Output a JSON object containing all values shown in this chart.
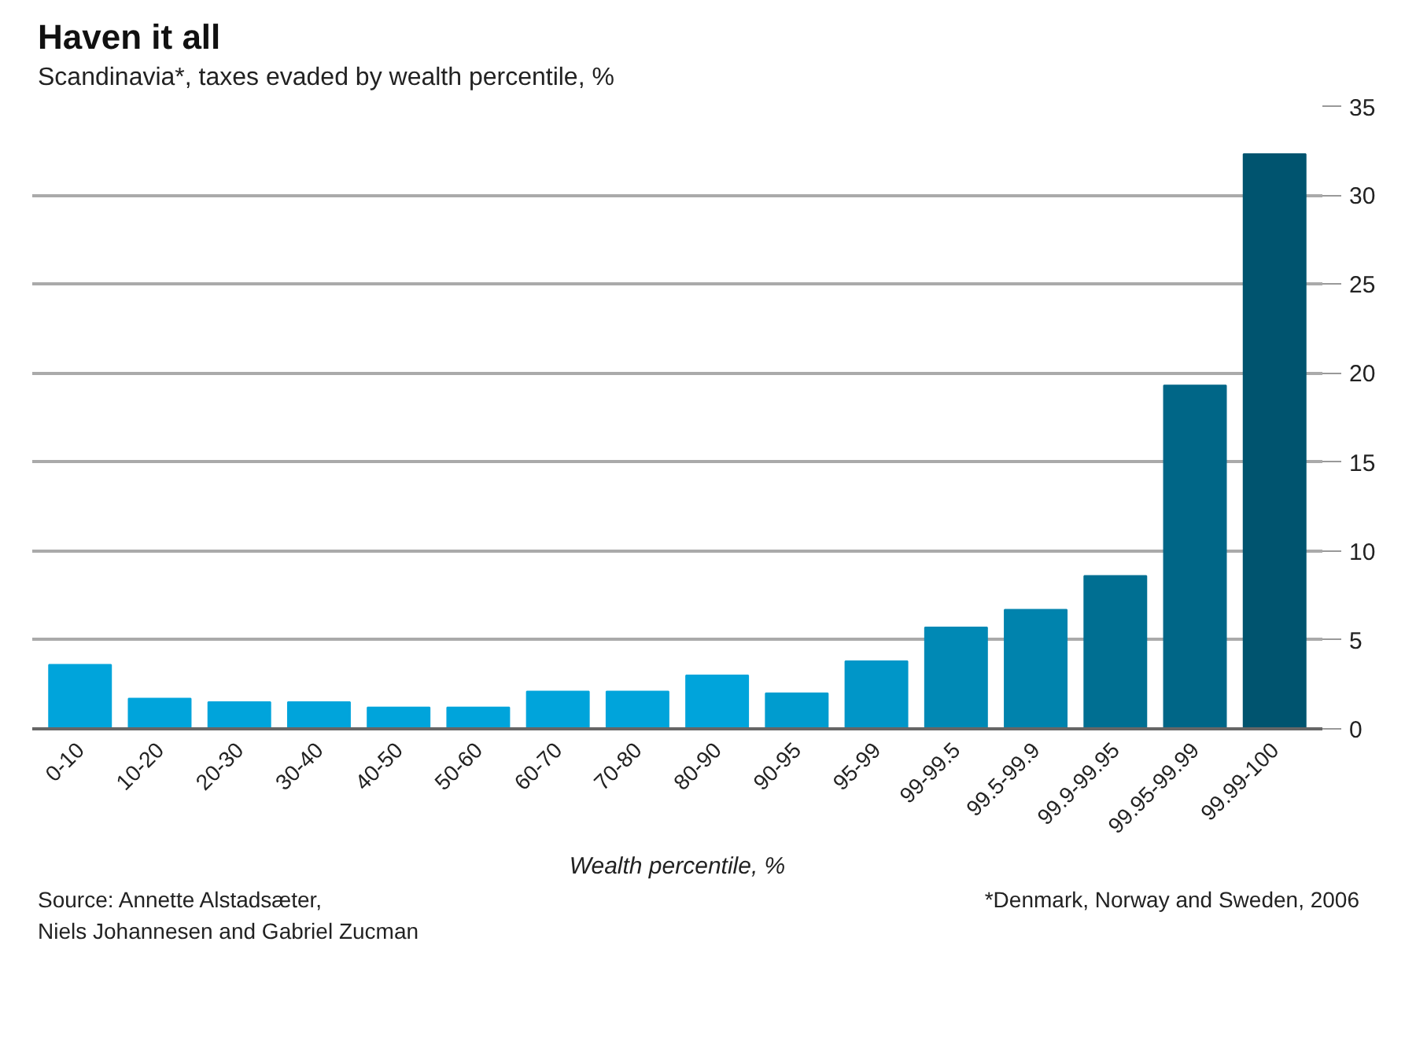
{
  "chart_data": {
    "type": "bar",
    "title": "Haven it all",
    "subtitle": "Scandinavia*, taxes evaded by wealth percentile, %",
    "xlabel": "Wealth percentile, %",
    "categories": [
      "0-10",
      "10-20",
      "20-30",
      "30-40",
      "40-50",
      "50-60",
      "60-70",
      "70-80",
      "80-90",
      "90-95",
      "95-99",
      "99-99.5",
      "99.5-99.9",
      "99.9-99.95",
      "99.95-99.99",
      "99.99-100"
    ],
    "values": [
      3.6,
      1.7,
      1.5,
      1.5,
      1.2,
      1.2,
      2.1,
      2.1,
      3.0,
      2.0,
      3.8,
      5.7,
      6.7,
      8.6,
      19.3,
      32.3
    ],
    "colors": [
      "#00a4db",
      "#00a4db",
      "#00a4db",
      "#00a4db",
      "#00a4db",
      "#00a4db",
      "#00a4db",
      "#00a4db",
      "#00a4db",
      "#009ccf",
      "#0096c8",
      "#0089b5",
      "#0083ad",
      "#006f92",
      "#006687",
      "#00546f"
    ],
    "ylim": [
      0,
      35
    ],
    "yticks": [
      0,
      5,
      10,
      15,
      20,
      25,
      30,
      35
    ],
    "grid": "y",
    "annotations": [
      "Source: Annette Alstadsæter,\nNiels Johannesen and Gabriel Zucman",
      "*Denmark, Norway and Sweden, 2006"
    ]
  }
}
